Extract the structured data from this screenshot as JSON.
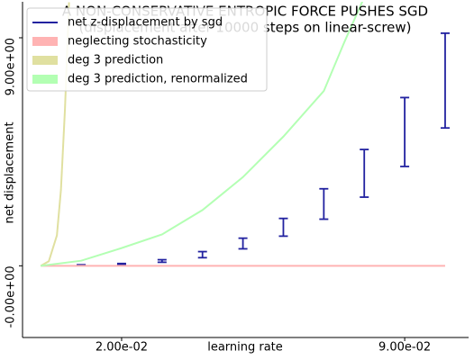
{
  "chart_data": {
    "type": "line",
    "title": "A NON-CONSERVATIVE ENTROPIC FORCE PUSHES SGD",
    "subtitle": "(displacement after 10000 steps on linear-screw)",
    "xlabel": "learning rate",
    "ylabel": "net displacement",
    "xlim": [
      -0.0045,
      0.1058
    ],
    "ylim": [
      -2.83,
      10.42
    ],
    "xticks": [
      {
        "value": 0.02,
        "label": "2.00e-02"
      },
      {
        "value": 0.09,
        "label": "9.00e-02"
      }
    ],
    "yticks": [
      {
        "value": 0,
        "label": "-0.00e+00"
      },
      {
        "value": 9,
        "label": "9.00e+00"
      }
    ],
    "legend": "upper left",
    "series": [
      {
        "name": "net z-displacement by sgd",
        "color": "#2222a0",
        "x": [
          0.01,
          0.02,
          0.03,
          0.04,
          0.05,
          0.06,
          0.07,
          0.08,
          0.09,
          0.1
        ],
        "values": [
          0.03,
          0.07,
          0.19,
          0.44,
          0.88,
          1.52,
          2.44,
          3.65,
          5.28,
          7.31
        ],
        "errors": [
          0.01,
          0.02,
          0.05,
          0.12,
          0.21,
          0.35,
          0.6,
          0.94,
          1.36,
          1.87
        ]
      },
      {
        "name": "neglecting stochasticity",
        "color": "#ffb3b3",
        "x": [
          0.0,
          0.1
        ],
        "values": [
          0,
          0
        ]
      },
      {
        "name": "deg 3 prediction",
        "color": "#e0e0a0",
        "x": [
          0.0,
          0.002,
          0.004,
          0.005,
          0.006,
          0.0065,
          0.007
        ],
        "values": [
          0,
          0.18,
          1.2,
          3.0,
          6.2,
          8.3,
          10.4
        ]
      },
      {
        "name": "deg 3 prediction, renormalized",
        "color": "#b3ffb3",
        "x": [
          0.0,
          0.01,
          0.02,
          0.03,
          0.04,
          0.05,
          0.06,
          0.07,
          0.075,
          0.08
        ],
        "values": [
          0,
          0.2,
          0.7,
          1.24,
          2.2,
          3.5,
          5.1,
          6.9,
          8.8,
          10.6
        ]
      }
    ]
  }
}
